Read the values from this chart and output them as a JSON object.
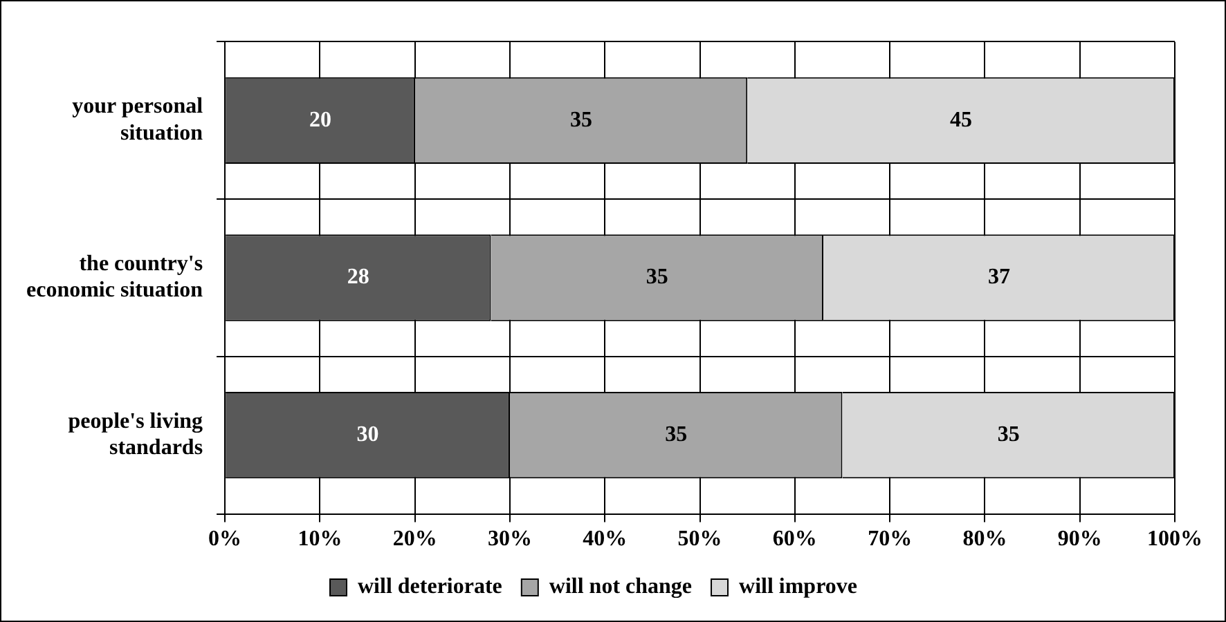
{
  "chart_data": {
    "type": "bar",
    "orientation": "horizontal",
    "stacked": true,
    "categories": [
      "your personal situation",
      "the country's economic situation",
      "people's living standards"
    ],
    "series": [
      {
        "name": "will deteriorate",
        "color": "#595959",
        "values": [
          20,
          28,
          30
        ]
      },
      {
        "name": "will not change",
        "color": "#a6a6a6",
        "values": [
          35,
          35,
          35
        ]
      },
      {
        "name": "will improve",
        "color": "#d9d9d9",
        "values": [
          45,
          37,
          35
        ]
      }
    ],
    "xlim": [
      0,
      100
    ],
    "xticks": [
      {
        "value": 0,
        "label": "0%"
      },
      {
        "value": 10,
        "label": "10%"
      },
      {
        "value": 20,
        "label": "20%"
      },
      {
        "value": 30,
        "label": "30%"
      },
      {
        "value": 40,
        "label": "40%"
      },
      {
        "value": 50,
        "label": "50%"
      },
      {
        "value": 60,
        "label": "60%"
      },
      {
        "value": 70,
        "label": "70%"
      },
      {
        "value": 80,
        "label": "80%"
      },
      {
        "value": 90,
        "label": "90%"
      },
      {
        "value": 100,
        "label": "100%"
      }
    ],
    "grid": true,
    "legend": "bottom",
    "data_labels": true
  }
}
